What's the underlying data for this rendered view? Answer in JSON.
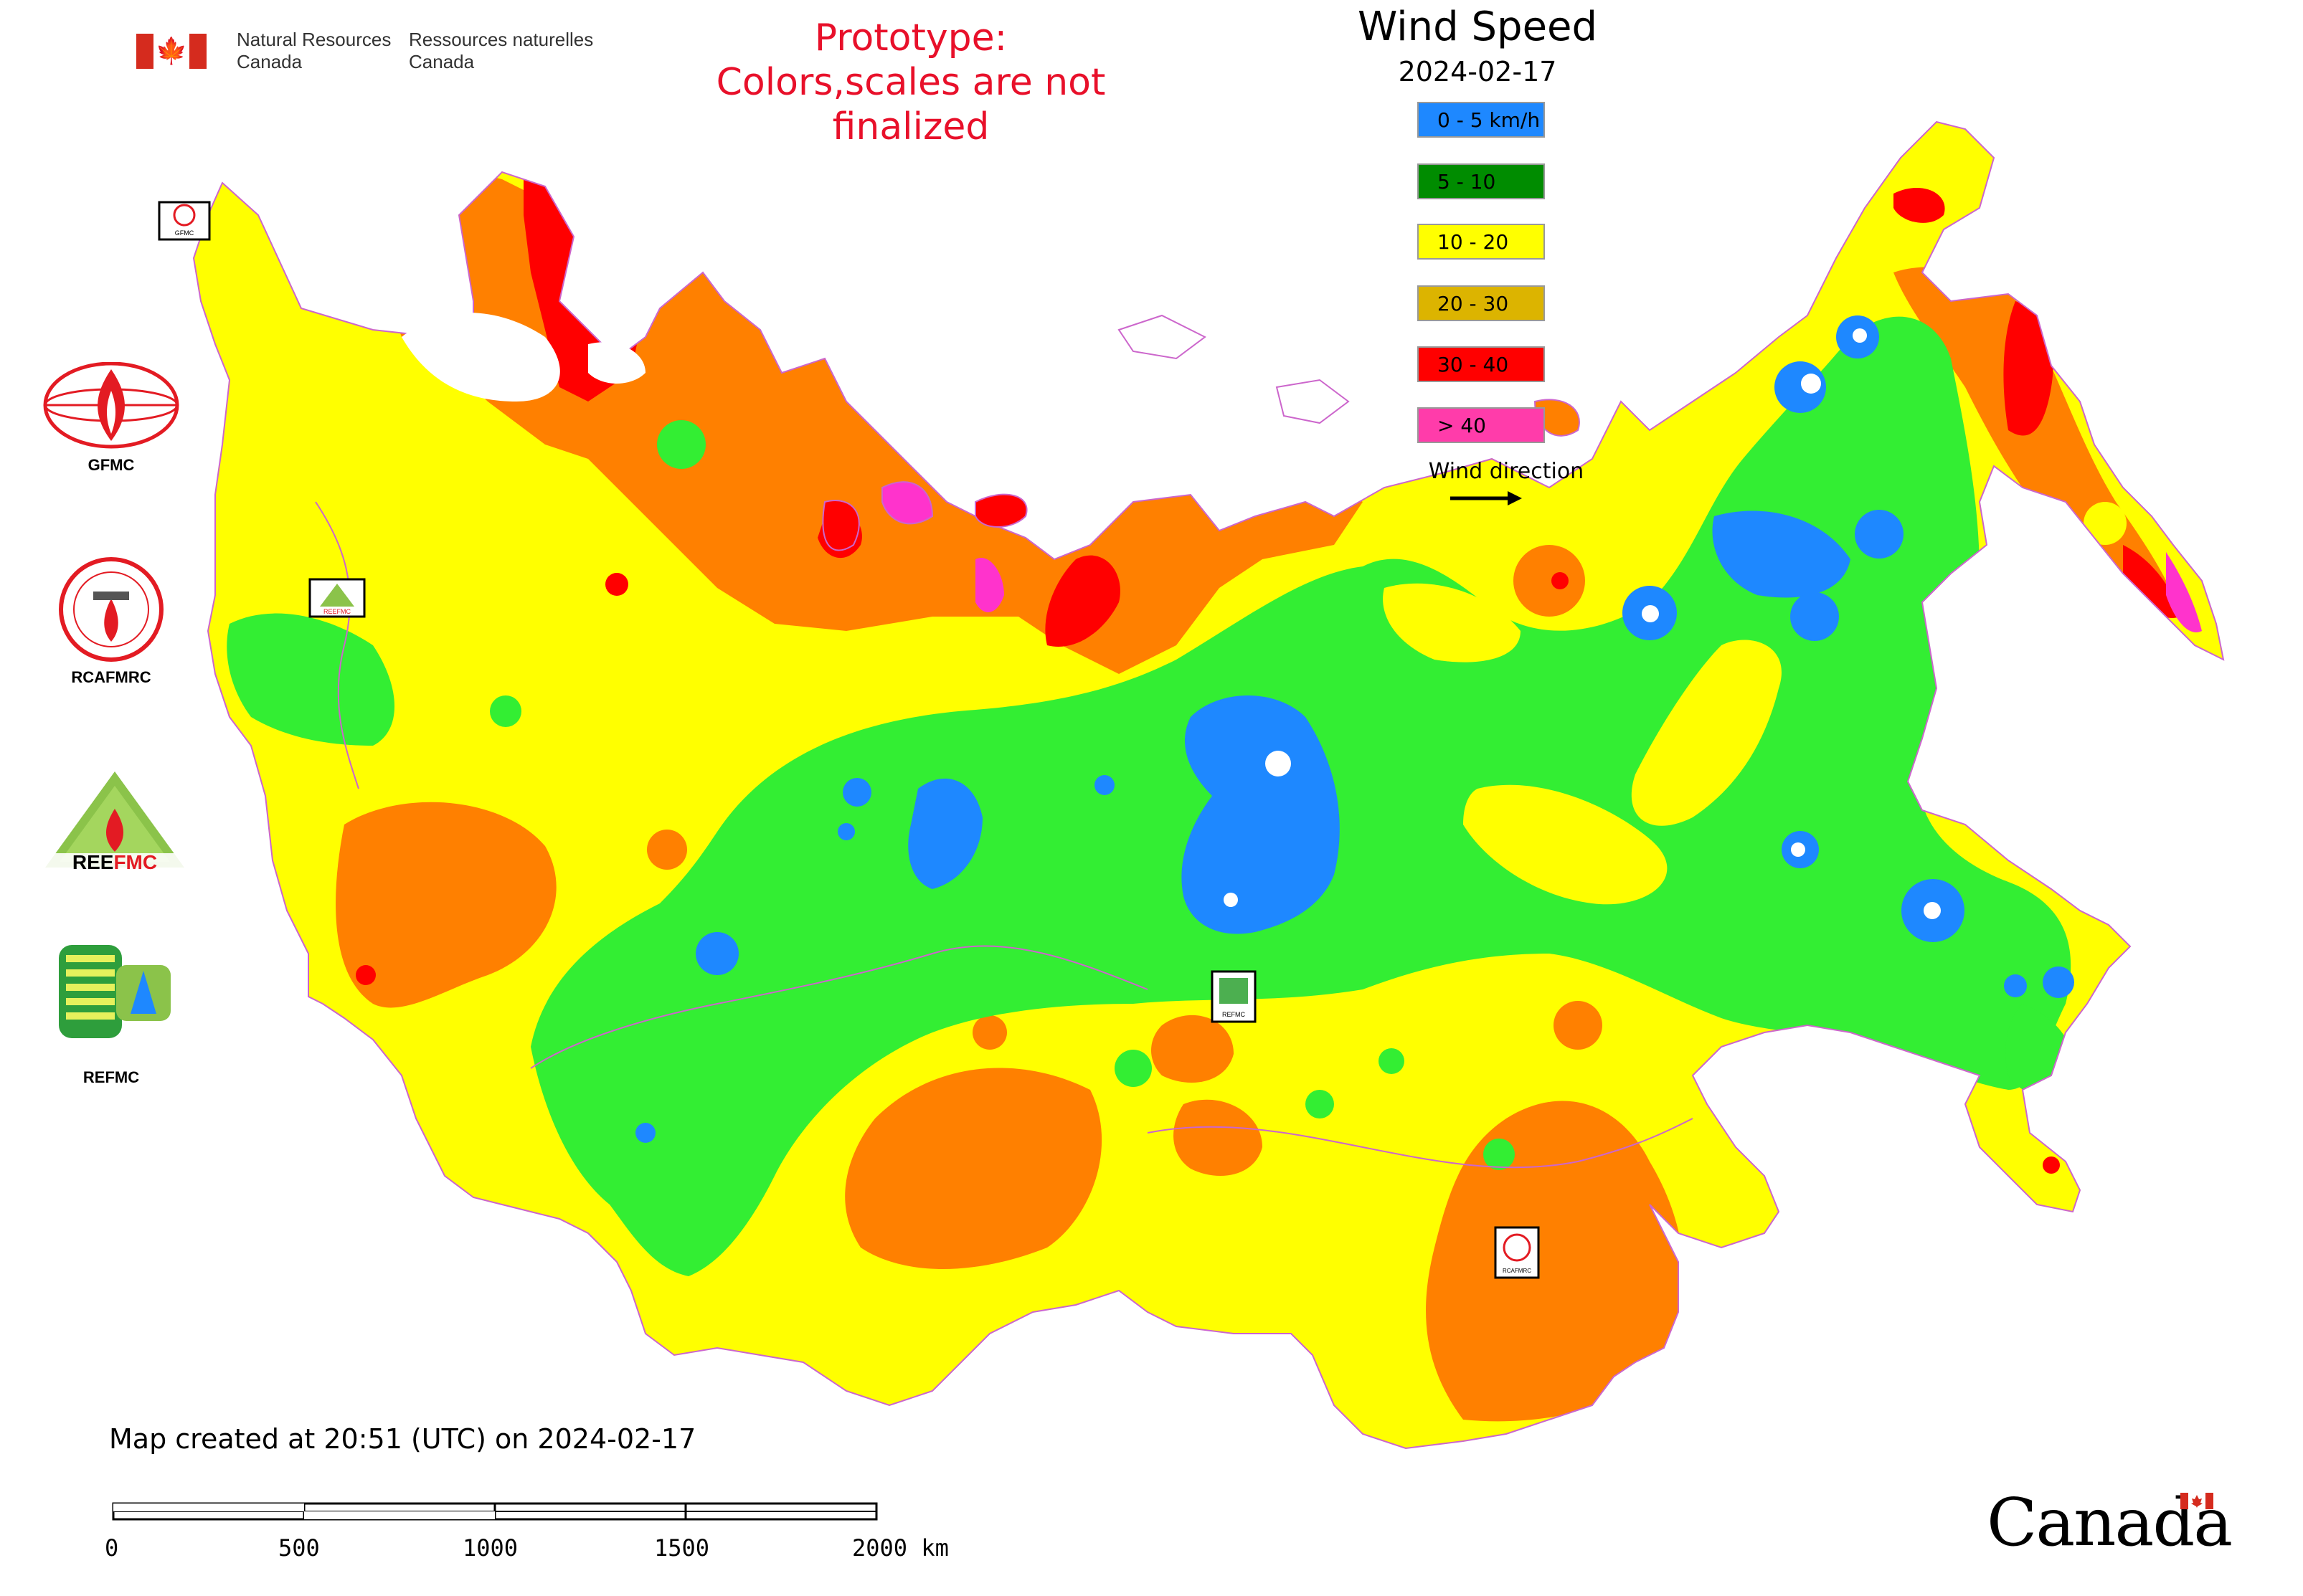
{
  "header": {
    "gov_en_line1": "Natural Resources",
    "gov_en_line2": "Canada",
    "gov_fr_line1": "Ressources naturelles",
    "gov_fr_line2": "Canada",
    "prototype_line1": "Prototype:",
    "prototype_line2": "Colors,scales are not finalized"
  },
  "legend": {
    "title": "Wind Speed",
    "date": "2024-02-17",
    "items": [
      {
        "label": "0 - 5 km/h",
        "color": "#1e88ff"
      },
      {
        "label": "5 - 10",
        "color": "#008c00"
      },
      {
        "label": "10 - 20",
        "color": "#ffff00"
      },
      {
        "label": "20 - 30",
        "color": "#dcb400"
      },
      {
        "label": "30 - 40",
        "color": "#ff0000"
      },
      {
        "label": "> 40",
        "color": "#ff3caa"
      }
    ],
    "wind_direction_label": "Wind direction"
  },
  "map": {
    "fill_colors": {
      "calm": "#1e88ff",
      "light": "#33ee33",
      "moderate": "#ffff00",
      "fresh": "#ff8000",
      "strong": "#ff0000",
      "gale": "#ff33cc",
      "border": "#cc66cc"
    },
    "markers": [
      "GFMC",
      "REEFMC",
      "REFMC",
      "RCAFMRC"
    ]
  },
  "side_logos": [
    {
      "name": "GFMC",
      "icon": "gfmc-flame-globe-icon"
    },
    {
      "name": "RCAFMRC",
      "icon": "rcafmrc-seal-icon"
    },
    {
      "name": "REEFMC",
      "icon": "reefmc-triangle-icon"
    },
    {
      "name": "REFMC",
      "icon": "refmc-sigma-icon"
    }
  ],
  "footer": {
    "created": "Map created at 20:51 (UTC) on 2024-02-17",
    "scale_labels": [
      "0",
      "500",
      "1000",
      "1500",
      "2000 km"
    ],
    "canada_wordmark": "Canada"
  }
}
